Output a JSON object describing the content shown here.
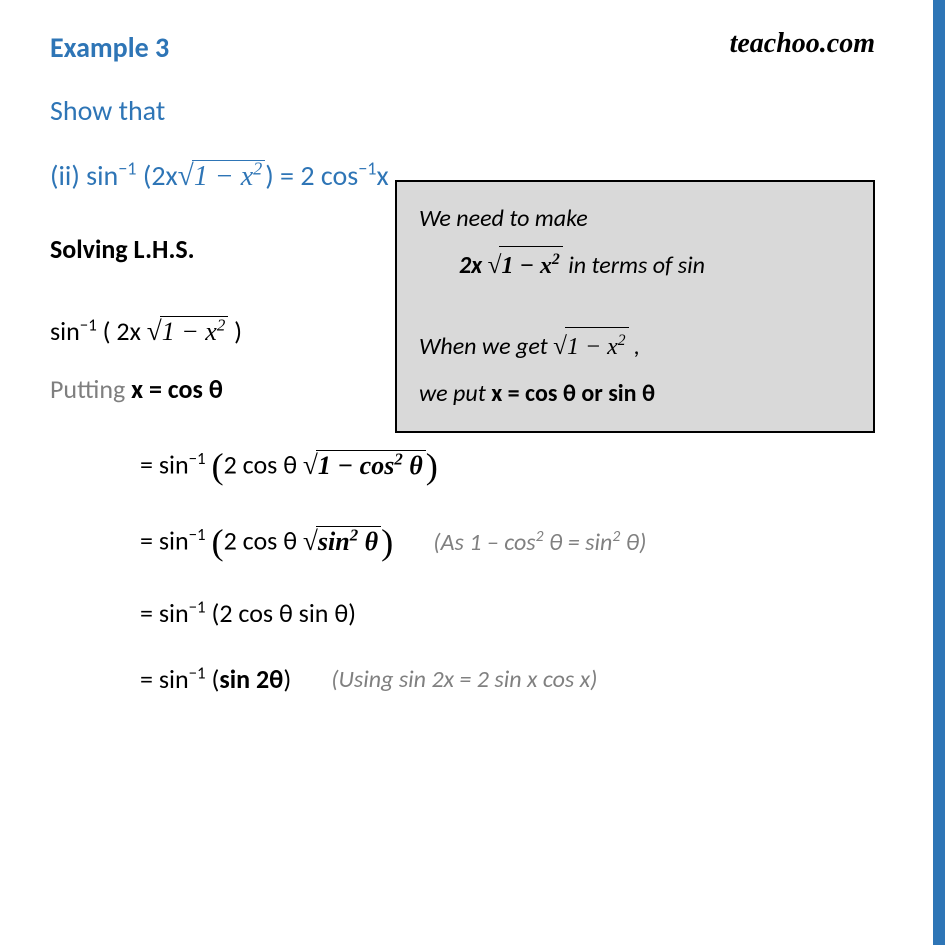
{
  "colors": {
    "accent": "#2e75b6",
    "side_stripe": "#2e75b6",
    "text_body": "#000000",
    "text_muted": "#7f7f7f",
    "hint_bg": "#d9d9d9",
    "hint_border": "#000000",
    "watermark": "#000000"
  },
  "watermark": "teachoo.com",
  "title": "Example 3",
  "prompt": "Show that",
  "problem": {
    "prefix": "(ii) sin",
    "sup1": "−1",
    "mid1": " (2x",
    "sqrt_radicand": "1 − x",
    "sqrt_sup": "2",
    "mid2": ") = 2 cos",
    "sup2": "−1",
    "tail": "x"
  },
  "section_head": "Solving L.H.S.",
  "step1": {
    "a": "sin",
    "sup": "−1",
    "b": " ( 2x ",
    "rad": "1 − x",
    "radsup": "2",
    "c": " )"
  },
  "sub_line": {
    "a": "Putting ",
    "b": "x = cos θ"
  },
  "step2": {
    "eq": "= sin",
    "sup": "−1",
    "open": " (",
    "inner1": "2 cos θ ",
    "rad": "1 − cos",
    "radsup": "2",
    "radtail": " θ",
    "close": ")"
  },
  "step3": {
    "eq": "= sin",
    "sup": "−1",
    "open": " (",
    "inner1": "2 cos θ ",
    "rad": "sin",
    "radsup": "2",
    "radtail": " θ",
    "close": ")",
    "ann_a": "(As 1 – cos",
    "ann_sup1": "2",
    "ann_b": " θ = sin",
    "ann_sup2": "2",
    "ann_c": " θ)"
  },
  "step4": {
    "text_a": "= sin",
    "sup": "−1",
    "text_b": " (2 cos θ sin θ)"
  },
  "step5": {
    "text_a": "= sin",
    "sup": "−1",
    "text_b": " (",
    "bold": "sin 2θ",
    "text_c": ")",
    "ann": "(Using sin 2x = 2 sin x cos x)"
  },
  "hint": {
    "row1": "We need to make",
    "row2_a": "2x ",
    "row2_rad": "1 − x",
    "row2_sup": "2",
    "row2_b": " in terms of sin",
    "row3_a": "When we get ",
    "row3_rad": "1 − x",
    "row3_sup": "2",
    "row3_b": " ,",
    "row4_a": "we put ",
    "row4_b": "x = cos θ or sin θ"
  }
}
